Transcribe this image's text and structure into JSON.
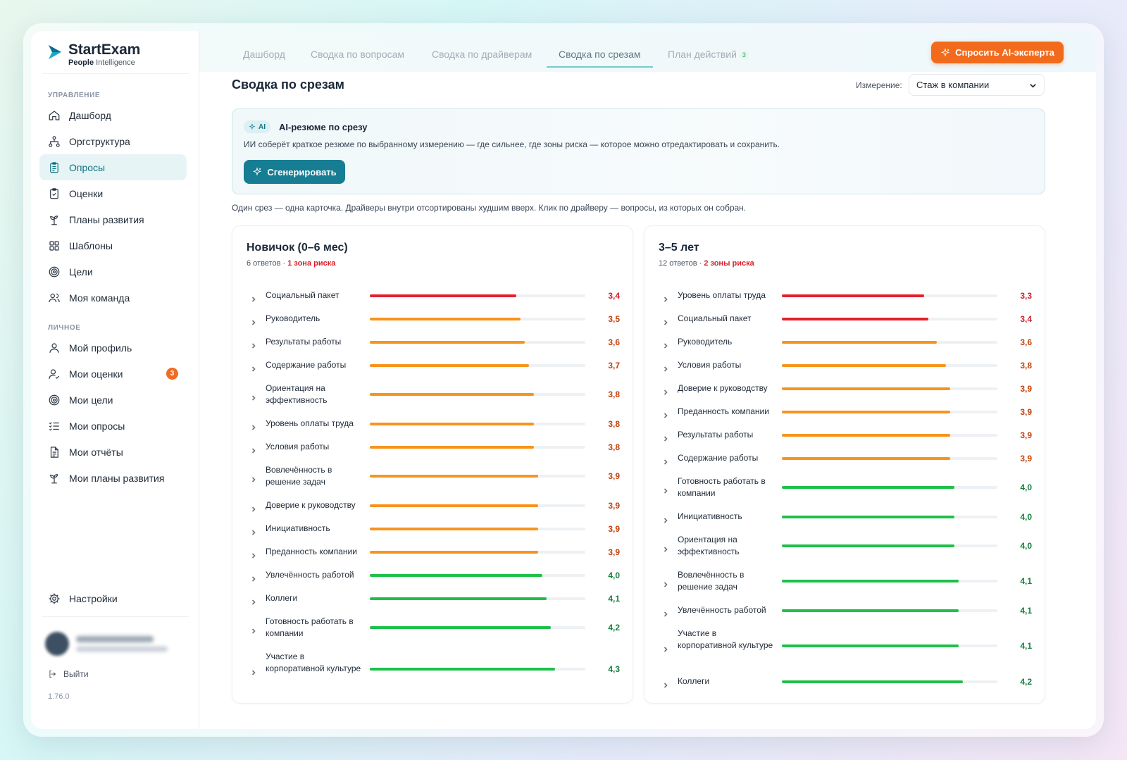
{
  "brand": {
    "name": "StartExam",
    "sub_bold": "People",
    "sub_rest": " Intelligence"
  },
  "sidebar": {
    "section_manage": "УПРАВЛЕНИЕ",
    "section_personal": "ЛИЧНОЕ",
    "manage_items": [
      {
        "label": "Дашборд",
        "icon": "home-icon"
      },
      {
        "label": "Оргструктура",
        "icon": "org-structure-icon"
      },
      {
        "label": "Опросы",
        "icon": "clipboard-icon",
        "active": true
      },
      {
        "label": "Оценки",
        "icon": "clipboard-check-icon"
      },
      {
        "label": "Планы развития",
        "icon": "sprout-icon"
      },
      {
        "label": "Шаблоны",
        "icon": "grid-icon"
      },
      {
        "label": "Цели",
        "icon": "target-icon"
      },
      {
        "label": "Моя команда",
        "icon": "team-icon"
      }
    ],
    "personal_items": [
      {
        "label": "Мой профиль",
        "icon": "user-icon"
      },
      {
        "label": "Мои оценки",
        "icon": "user-check-icon",
        "badge": "3"
      },
      {
        "label": "Мои цели",
        "icon": "target-icon"
      },
      {
        "label": "Мои опросы",
        "icon": "checklist-icon"
      },
      {
        "label": "Мои отчёты",
        "icon": "report-icon"
      },
      {
        "label": "Мои планы развития",
        "icon": "sprout-icon"
      }
    ],
    "settings": "Настройки",
    "logout": "Выйти",
    "version": "1.76.0"
  },
  "tabs": [
    {
      "label": "Дашборд"
    },
    {
      "label": "Сводка по вопросам"
    },
    {
      "label": "Сводка по драйверам"
    },
    {
      "label": "Сводка по срезам",
      "active": true
    },
    {
      "label": "План действий",
      "count": "3"
    }
  ],
  "ai_expert_button": "Спросить AI-эксперта",
  "page_title": "Сводка по срезам",
  "dimension": {
    "label": "Измерение:",
    "value": "Стаж в компании"
  },
  "ai_summary": {
    "pill": "AI",
    "title": "AI-резюме по срезу",
    "description": "ИИ соберёт краткое резюме по выбранному измерению — где сильнее, где зоны риска — которое можно отредактировать и сохранить.",
    "button": "Сгенерировать"
  },
  "hint": "Один срез — одна карточка. Драйверы внутри отсортированы худшим вверх. Клик по драйверу — вопросы, из которых он собран.",
  "colors": {
    "red": "#e3202e",
    "orange": "#f7941d",
    "green": "#1ec04a",
    "red_text": "#d11f27",
    "orange_text": "#c2410c",
    "green_text": "#15803d"
  },
  "scale_max": 5,
  "slices": [
    {
      "title": "Новичок (0–6 мес)",
      "responses": "6 ответов",
      "risk": "1 зона риска",
      "drivers": [
        {
          "name": "Социальный пакет",
          "value": "3,4",
          "score": 3.4,
          "level": "red"
        },
        {
          "name": "Руководитель",
          "value": "3,5",
          "score": 3.5,
          "level": "orange"
        },
        {
          "name": "Результаты работы",
          "value": "3,6",
          "score": 3.6,
          "level": "orange"
        },
        {
          "name": "Содержание работы",
          "value": "3,7",
          "score": 3.7,
          "level": "orange"
        },
        {
          "name": "Ориентация на эффективность",
          "value": "3,8",
          "score": 3.8,
          "level": "orange"
        },
        {
          "name": "Уровень оплаты труда",
          "value": "3,8",
          "score": 3.8,
          "level": "orange"
        },
        {
          "name": "Условия работы",
          "value": "3,8",
          "score": 3.8,
          "level": "orange"
        },
        {
          "name": "Вовлечённость в решение задач",
          "value": "3,9",
          "score": 3.9,
          "level": "orange"
        },
        {
          "name": "Доверие к руководству",
          "value": "3,9",
          "score": 3.9,
          "level": "orange"
        },
        {
          "name": "Инициативность",
          "value": "3,9",
          "score": 3.9,
          "level": "orange"
        },
        {
          "name": "Преданность компании",
          "value": "3,9",
          "score": 3.9,
          "level": "orange"
        },
        {
          "name": "Увлечённость работой",
          "value": "4,0",
          "score": 4.0,
          "level": "green"
        },
        {
          "name": "Коллеги",
          "value": "4,1",
          "score": 4.1,
          "level": "green"
        },
        {
          "name": "Готовность работать в компании",
          "value": "4,2",
          "score": 4.2,
          "level": "green"
        },
        {
          "name": "Участие в корпоративной культуре",
          "value": "4,3",
          "score": 4.3,
          "level": "green"
        }
      ]
    },
    {
      "title": "3–5 лет",
      "responses": "12 ответов",
      "risk": "2 зоны риска",
      "drivers": [
        {
          "name": "Уровень оплаты труда",
          "value": "3,3",
          "score": 3.3,
          "level": "red"
        },
        {
          "name": "Социальный пакет",
          "value": "3,4",
          "score": 3.4,
          "level": "red"
        },
        {
          "name": "Руководитель",
          "value": "3,6",
          "score": 3.6,
          "level": "orange"
        },
        {
          "name": "Условия работы",
          "value": "3,8",
          "score": 3.8,
          "level": "orange"
        },
        {
          "name": "Доверие к руководству",
          "value": "3,9",
          "score": 3.9,
          "level": "orange"
        },
        {
          "name": "Преданность компании",
          "value": "3,9",
          "score": 3.9,
          "level": "orange"
        },
        {
          "name": "Результаты работы",
          "value": "3,9",
          "score": 3.9,
          "level": "orange"
        },
        {
          "name": "Содержание работы",
          "value": "3,9",
          "score": 3.9,
          "level": "orange"
        },
        {
          "name": "Готовность работать в компании",
          "value": "4,0",
          "score": 4.0,
          "level": "green"
        },
        {
          "name": "Инициативность",
          "value": "4,0",
          "score": 4.0,
          "level": "green"
        },
        {
          "name": "Ориентация на эффективность",
          "value": "4,0",
          "score": 4.0,
          "level": "green"
        },
        {
          "name": "Вовлечённость в решение задач",
          "value": "4,1",
          "score": 4.1,
          "level": "green"
        },
        {
          "name": "Увлечённость работой",
          "value": "4,1",
          "score": 4.1,
          "level": "green"
        },
        {
          "name": "Участие в корпоративной культуре",
          "value": "4,1",
          "score": 4.1,
          "level": "green"
        },
        {
          "name": "Коллеги",
          "value": "4,2",
          "score": 4.2,
          "level": "green"
        }
      ]
    }
  ]
}
